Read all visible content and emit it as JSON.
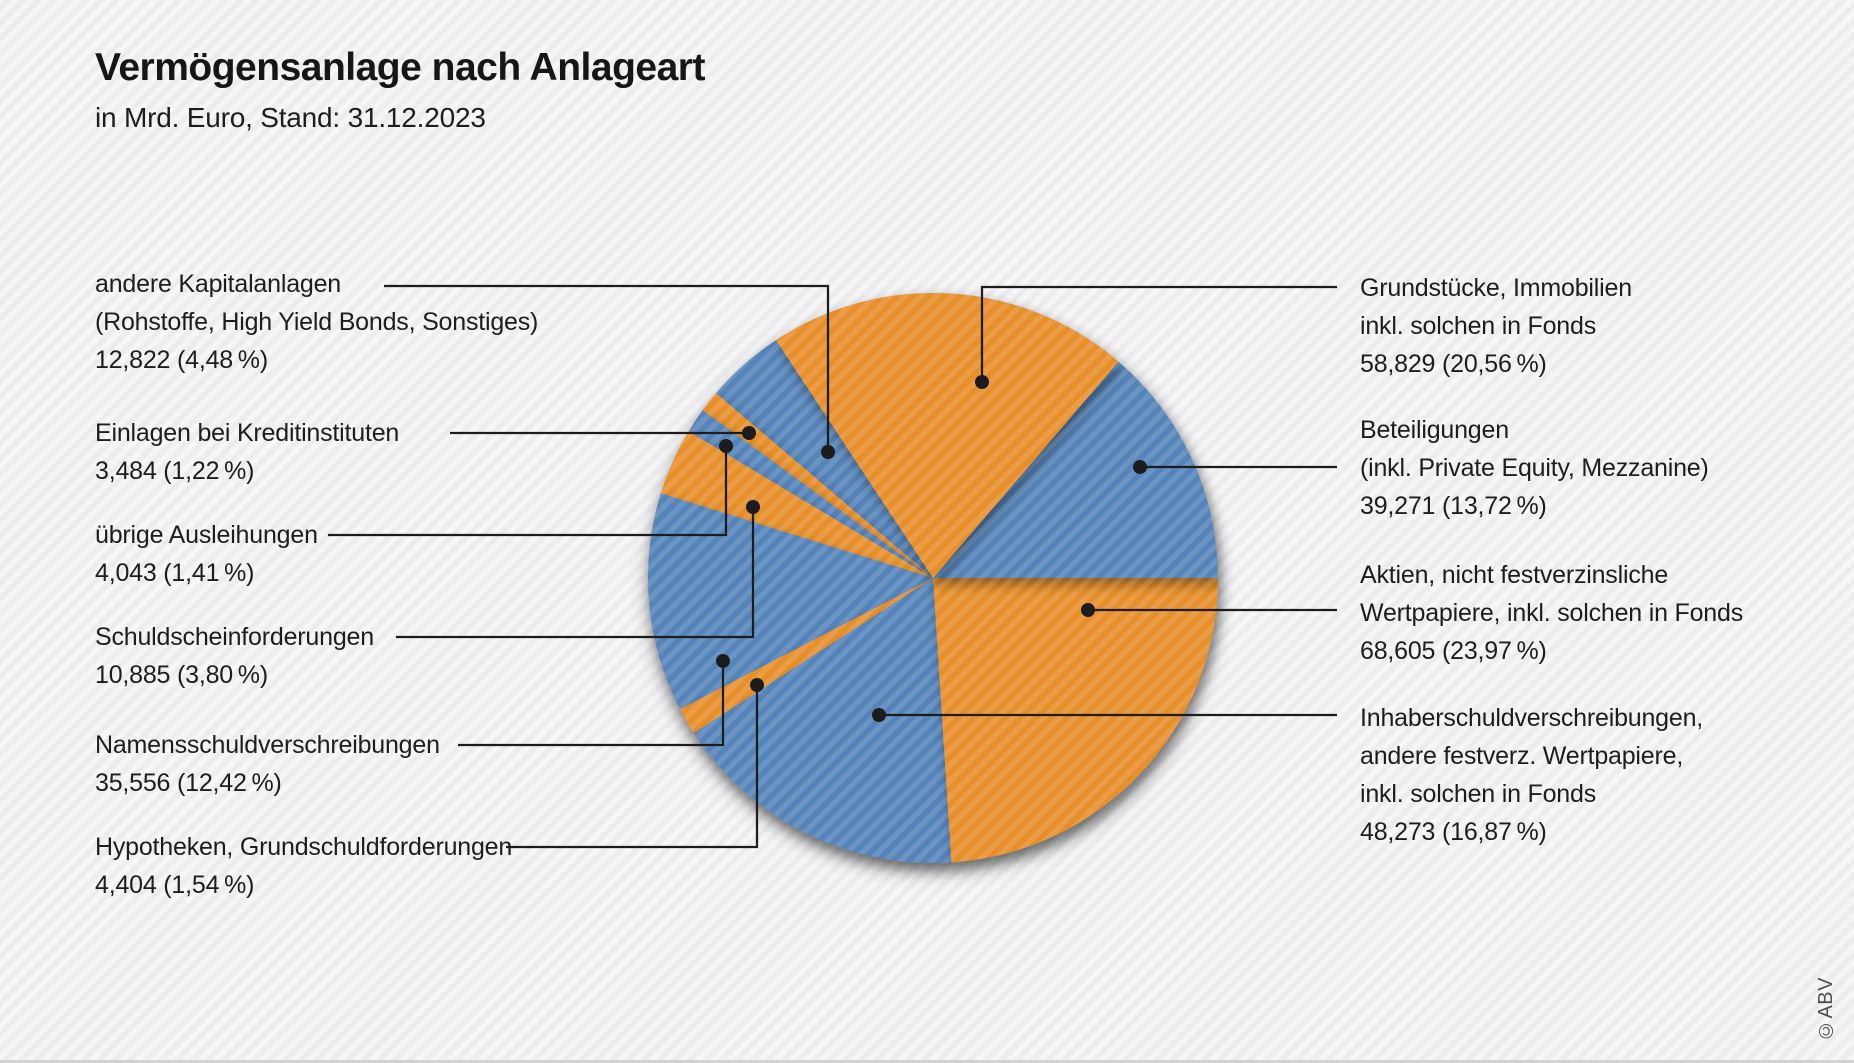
{
  "header": {
    "title": "Vermögensanlage nach Anlageart",
    "subtitle": "in Mrd. Euro, Stand: 31.12.2023"
  },
  "copyright": "©ABV",
  "colors": {
    "orange": "#E78F2C",
    "blue": "#5584BA",
    "leader_line": "#1C1C1C",
    "background": "#F1F1F2",
    "text": "#1D1D1B"
  },
  "chart_data": {
    "type": "pie",
    "title": "Vermögensanlage nach Anlageart",
    "subtitle": "in Mrd. Euro, Stand: 31.12.2023",
    "unit": "Mrd. Euro",
    "start_angle_deg": -33.43,
    "clockwise": true,
    "slices": [
      {
        "id": "grundstuecke",
        "name": "Grundstücke, Immobilien inkl. solchen in Fonds",
        "value_mrd_eur": 58.829,
        "pct": 20.56,
        "color": "orange",
        "side": "right",
        "label_lines": [
          "Grundstücke, Immobilien",
          "inkl. solchen in Fonds",
          "58,829 (20,56 %)"
        ]
      },
      {
        "id": "beteiligungen",
        "name": "Beteiligungen (inkl. Private Equity, Mezzanine)",
        "value_mrd_eur": 39.271,
        "pct": 13.72,
        "color": "blue",
        "side": "right",
        "label_lines": [
          "Beteiligungen",
          "(inkl. Private Equity, Mezzanine)",
          "39,271 (13,72 %)"
        ]
      },
      {
        "id": "aktien",
        "name": "Aktien, nicht festverzinsliche Wertpapiere, inkl. solchen in Fonds",
        "value_mrd_eur": 68.605,
        "pct": 23.97,
        "color": "orange",
        "side": "right",
        "label_lines": [
          "Aktien, nicht festverzinsliche",
          "Wertpapiere, inkl. solchen in Fonds",
          "68,605 (23,97 %)"
        ]
      },
      {
        "id": "inhaberschuldverschreibungen",
        "name": "Inhaberschuldverschreibungen, andere festverz. Wertpapiere, inkl. solchen in Fonds",
        "value_mrd_eur": 48.273,
        "pct": 16.87,
        "color": "blue",
        "side": "right",
        "label_lines": [
          "Inhaberschuldverschreibungen,",
          "andere festverz. Wertpapiere,",
          "inkl. solchen in Fonds",
          "48,273 (16,87 %)"
        ]
      },
      {
        "id": "hypotheken",
        "name": "Hypotheken, Grundschuldforderungen",
        "value_mrd_eur": 4.404,
        "pct": 1.54,
        "color": "orange",
        "side": "left",
        "label_lines": [
          "Hypotheken, Grundschuldforderungen",
          "4,404 (1,54 %)"
        ]
      },
      {
        "id": "namensschuldverschreibungen",
        "name": "Namensschuldverschreibungen",
        "value_mrd_eur": 35.556,
        "pct": 12.42,
        "color": "blue",
        "side": "left",
        "label_lines": [
          "Namensschuldverschreibungen",
          "35,556 (12,42 %)"
        ]
      },
      {
        "id": "schuldscheinforderungen",
        "name": "Schuldscheinforderungen",
        "value_mrd_eur": 10.885,
        "pct": 3.8,
        "color": "orange",
        "side": "left",
        "label_lines": [
          "Schuldscheinforderungen",
          "10,885 (3,80 %)"
        ]
      },
      {
        "id": "uebrige-ausleihungen",
        "name": "übrige Ausleihungen",
        "value_mrd_eur": 4.043,
        "pct": 1.41,
        "color": "blue",
        "side": "left",
        "label_lines": [
          "übrige Ausleihungen",
          "4,043 (1,41 %)"
        ]
      },
      {
        "id": "einlagen",
        "name": "Einlagen bei Kreditinstituten",
        "value_mrd_eur": 3.484,
        "pct": 1.22,
        "color": "orange",
        "side": "left",
        "label_lines": [
          "Einlagen bei Kreditinstituten",
          "3,484 (1,22 %)"
        ]
      },
      {
        "id": "andere-kapitalanlagen",
        "name": "andere Kapitalanlagen (Rohstoffe, High Yield Bonds, Sonstiges)",
        "value_mrd_eur": 12.822,
        "pct": 4.48,
        "color": "blue",
        "side": "left",
        "label_lines": [
          "andere Kapitalanlagen",
          "(Rohstoffe, High Yield Bonds, Sonstiges)",
          "12,822 (4,48 %)"
        ]
      }
    ]
  }
}
